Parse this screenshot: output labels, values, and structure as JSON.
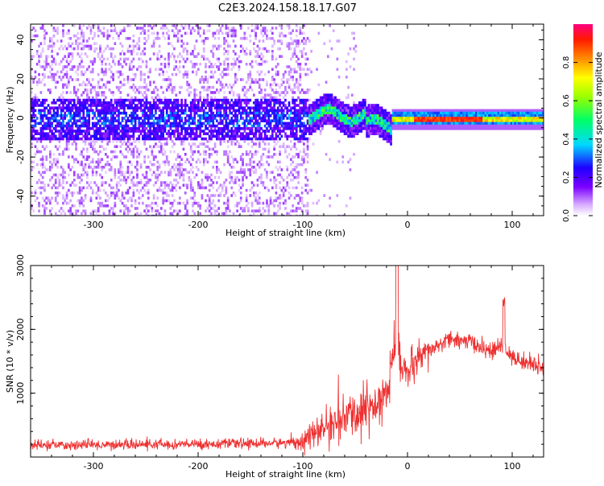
{
  "title": "C2E3.2024.158.18.17.G07",
  "chart_data": [
    {
      "type": "heatmap",
      "xlabel": "Height of straight line (km)",
      "ylabel": "Frequency (Hz)",
      "xlim": [
        -360,
        130
      ],
      "ylim": [
        -50,
        48
      ],
      "x_ticks": [
        -300,
        -200,
        -100,
        0,
        100
      ],
      "y_ticks": [
        -40,
        -20,
        0,
        20,
        40
      ],
      "colorbar": {
        "label": "Normalized spectral amplitude",
        "range": [
          0.0,
          1.0
        ],
        "ticks": [
          0.0,
          0.2,
          0.4,
          0.6,
          0.8
        ],
        "tick_labels": [
          "0.0",
          "0.2",
          "0.4",
          "0.6",
          "0.8"
        ]
      },
      "regions": [
        {
          "x": [
            -360,
            -95
          ],
          "description_value": "broadband low amplitude noise, dense band |f|<10 Hz, amplitude ~0.1-0.3"
        },
        {
          "x": [
            -95,
            -15
          ],
          "y_center": 0,
          "amplitude": 0.45
        },
        {
          "x": [
            -15,
            130
          ],
          "y_center": 0,
          "amplitude": 0.9
        }
      ],
      "grid": false
    },
    {
      "type": "line",
      "xlabel": "Height of straight line (km)",
      "ylabel": "SNR (10 * v/v)",
      "xlim": [
        -360,
        130
      ],
      "ylim": [
        0,
        3000
      ],
      "x_ticks": [
        -300,
        -200,
        -100,
        0,
        100
      ],
      "y_ticks": [
        1000,
        2000,
        3000
      ],
      "series": [
        {
          "color": "#ee3030",
          "x": [
            -360,
            -300,
            -200,
            -120,
            -100,
            -80,
            -60,
            -40,
            -20,
            -12,
            0,
            20,
            40,
            60,
            80,
            92,
            100,
            130
          ],
          "values": [
            180,
            190,
            200,
            220,
            260,
            450,
            600,
            750,
            1000,
            1700,
            1300,
            1650,
            1850,
            1800,
            1650,
            1750,
            1550,
            1400
          ]
        }
      ],
      "grid": false
    }
  ]
}
